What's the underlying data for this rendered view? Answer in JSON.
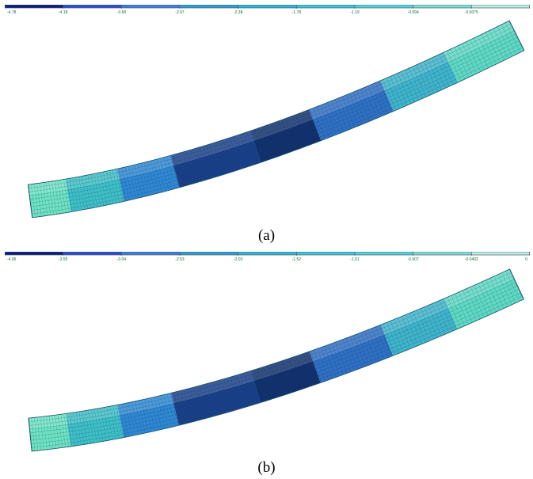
{
  "figures": [
    {
      "id": "a",
      "caption": "(a)",
      "legend_ticks": [
        "-4.78",
        "-4.18",
        "-3.58",
        "-2.97",
        "-2.38",
        "-1.78",
        "-1.19",
        "-0.594",
        "-0.0075",
        ""
      ]
    },
    {
      "id": "b",
      "caption": "(b)",
      "legend_ticks": [
        "-4.06",
        "-3.55",
        "-3.04",
        "-2.53",
        "-2.03",
        "-1.52",
        "-1.01",
        "-0.507",
        "-0.0402",
        "0"
      ]
    }
  ],
  "legend_colors": [
    "#0b1f7a",
    "#2a4fc9",
    "#3b7fd8",
    "#2e9fd0",
    "#2bb8d2",
    "#38c7d8",
    "#52d4d6",
    "#79e0d0",
    "#b7f0e0"
  ],
  "beam_zone_colors": [
    "#6fe3c4",
    "#3fc0c8",
    "#2f88d4",
    "#1a3f8a",
    "#12306f",
    "#2f6fc4",
    "#3fb4cc",
    "#5fd8c4"
  ]
}
